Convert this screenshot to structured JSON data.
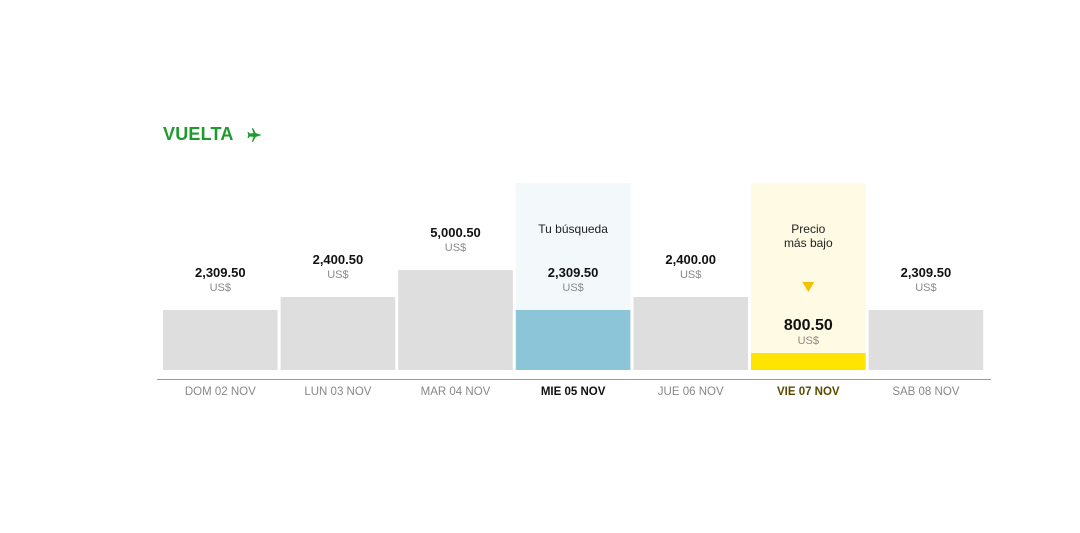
{
  "header": {
    "title": "VUELTA",
    "icon": "plane-icon"
  },
  "colors": {
    "accent": "#1f9a2f",
    "bar": "#dedede",
    "selected_bar": "#8cc4d8",
    "selected_bg": "#f3f8fb",
    "lowest_bar": "#ffe400",
    "lowest_bg": "#fefae3",
    "lowest_marker": "#f2c200"
  },
  "chart_data": {
    "type": "bar",
    "currency": "US$",
    "categories": [
      "DOM 02 NOV",
      "LUN 03 NOV",
      "MAR 04 NOV",
      "MIE 05 NOV",
      "JUE 06 NOV",
      "VIE 07 NOV",
      "SAB 08 NOV"
    ],
    "values": [
      2309.5,
      2400.5,
      5000.5,
      2309.5,
      2400.0,
      800.5,
      2309.5
    ],
    "value_labels": [
      "2,309.50",
      "2,400.50",
      "5,000.50",
      "2,309.50",
      "2,400.00",
      "800.50",
      "2,309.50"
    ],
    "selected_index": 3,
    "selected_label": "Tu búsqueda",
    "lowest_index": 5,
    "lowest_label": [
      "Precio",
      "más bajo"
    ]
  }
}
